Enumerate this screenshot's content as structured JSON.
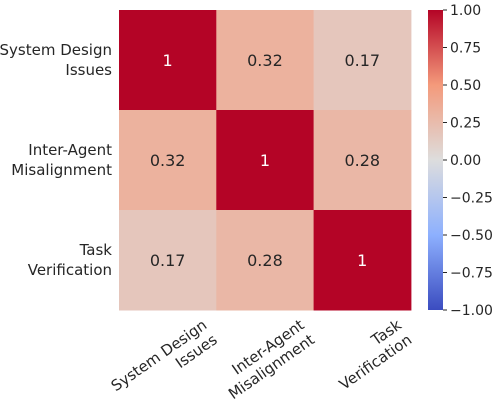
{
  "chart_data": {
    "type": "heatmap",
    "rows": [
      "System Design\nIssues",
      "Inter-Agent\nMisalignment",
      "Task\nVerification"
    ],
    "cols": [
      "System Design\nIssues",
      "Inter-Agent\nMisalignment",
      "Task\nVerification"
    ],
    "values": [
      [
        1,
        0.32,
        0.17
      ],
      [
        0.32,
        1,
        0.28
      ],
      [
        0.17,
        0.28,
        1
      ]
    ],
    "cell_labels": [
      [
        "1",
        "0.32",
        "0.17"
      ],
      [
        "0.32",
        "1",
        "0.28"
      ],
      [
        "0.17",
        "0.28",
        "1"
      ]
    ],
    "colorbar": {
      "colormap": "coolwarm",
      "vmin": -1.0,
      "vmax": 1.0,
      "ticks": [
        1.0,
        0.75,
        0.5,
        0.25,
        0.0,
        -0.25,
        -0.5,
        -0.75,
        -1.0
      ],
      "tick_labels": [
        "1.00",
        "0.75",
        "0.50",
        "0.25",
        "0.00",
        "−0.25",
        "−0.50",
        "−0.75",
        "−1.00"
      ]
    },
    "colors": {
      "low": "#3b4cc0",
      "mid": "#dddddd",
      "high": "#b40426",
      "text_on_dark": "#ffffff",
      "text_on_light": "#262626"
    }
  }
}
